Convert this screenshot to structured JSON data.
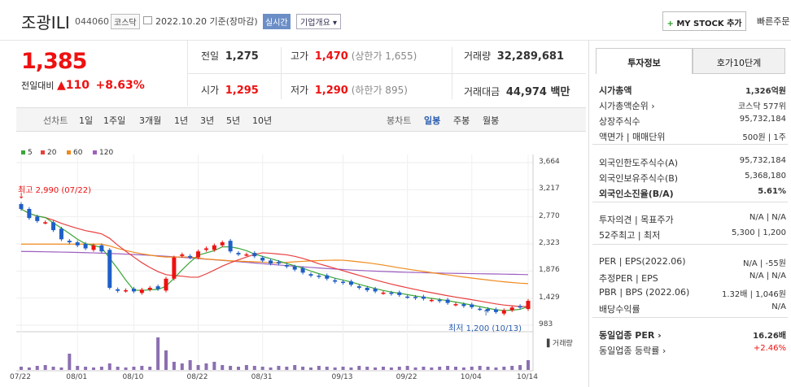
{
  "header": {
    "stock_name": "조광ILI",
    "stock_code": "044060",
    "market": "코스닥",
    "date_text": "2022.10.20  기준(장마감)",
    "realtime_label": "실시간",
    "overview_label": "기업개요 ▾",
    "my_stock_label": "MY STOCK 추가",
    "quick_order_label": "빠른주문"
  },
  "quote": {
    "price": "1,385",
    "prev_label": "전일대비",
    "change": "▲110",
    "change_pct": "+8.63%"
  },
  "summary": {
    "prev_close_label": "전일",
    "prev_close": "1,275",
    "high_label": "고가",
    "high": "1,470",
    "upper_limit": "(상한가 1,655)",
    "volume_label": "거래량",
    "volume": "32,289,681",
    "open_label": "시가",
    "open": "1,295",
    "low_label": "저가",
    "low": "1,290",
    "lower_limit": "(하한가 895)",
    "amount_label": "거래대금",
    "amount": "44,974 백만"
  },
  "toolbar": {
    "line_label": "선차트",
    "periods": [
      "1일",
      "1주일",
      "3개월",
      "1년",
      "3년",
      "5년",
      "10년"
    ],
    "candle_label": "봉차트",
    "candle_periods": [
      "일봉",
      "주봉",
      "월봉"
    ]
  },
  "legend": [
    {
      "label": "5",
      "color": "#3aa639"
    },
    {
      "label": "20",
      "color": "#e8403f"
    },
    {
      "label": "60",
      "color": "#f08a1c"
    },
    {
      "label": "120",
      "color": "#9d5fc0"
    }
  ],
  "annotations": {
    "high": "최고 2,990 (07/22)",
    "low": "최저 1,200 (10/13)",
    "volume_label": "거래량"
  },
  "chart_data": {
    "type": "candlestick",
    "y_ticks": [
      "3,664",
      "3,217",
      "2,770",
      "2,323",
      "1,876",
      "1,429",
      "983"
    ],
    "ylim": [
      983,
      3664
    ],
    "x_ticks": [
      "07/22",
      "08/01",
      "08/10",
      "08/22",
      "08/31",
      "09/13",
      "09/22",
      "10/04",
      "10/14"
    ],
    "close_approx": [
      2900,
      2750,
      2700,
      2680,
      2550,
      2400,
      2350,
      2300,
      2250,
      2300,
      2200,
      1600,
      1550,
      1560,
      1540,
      1570,
      1600,
      1580,
      1750,
      2100,
      2150,
      2100,
      2200,
      2250,
      2300,
      2350,
      2200,
      2150,
      2150,
      2120,
      2050,
      2000,
      2000,
      1950,
      1900,
      1850,
      1800,
      1780,
      1750,
      1700,
      1680,
      1650,
      1600,
      1560,
      1540,
      1520,
      1500,
      1480,
      1450,
      1430,
      1420,
      1400,
      1380,
      1350,
      1330,
      1300,
      1280,
      1250,
      1220,
      1200,
      1230,
      1275,
      1275,
      1385
    ]
  },
  "info_panel": {
    "tab_active": "투자정보",
    "tab_inactive": "호가10단계",
    "rows1": [
      {
        "label": "시가총액",
        "value": "1,326억원"
      },
      {
        "label": "시가총액순위 ›",
        "value": "코스닥 577위"
      },
      {
        "label": "상장주식수",
        "value": "95,732,184"
      },
      {
        "label": "액면가 | 매매단위",
        "value": "500원 | 1주"
      }
    ],
    "rows2": [
      {
        "label": "외국인한도주식수(A)",
        "value": "95,732,184"
      },
      {
        "label": "외국인보유주식수(B)",
        "value": "5,368,180"
      },
      {
        "label": "외국인소진율(B/A)",
        "value": "5.61%"
      }
    ],
    "rows3": [
      {
        "label": "투자의견 | 목표주가",
        "value": "N/A | N/A"
      },
      {
        "label": "52주최고 | 최저",
        "value": "5,300 | 1,200"
      }
    ],
    "rows4": [
      {
        "label": "PER | EPS(2022.06)",
        "value": "N/A | -55원"
      },
      {
        "label": "추정PER | EPS",
        "value": "N/A | N/A"
      },
      {
        "label": "PBR | BPS (2022.06)",
        "value": "1.32배 | 1,046원"
      },
      {
        "label": "배당수익률",
        "value": "N/A"
      }
    ],
    "rows5": [
      {
        "label": "동일업종 PER ›",
        "value": "16.26배"
      },
      {
        "label": "동일업종 등락률 ›",
        "value": "+2.46%"
      }
    ]
  }
}
